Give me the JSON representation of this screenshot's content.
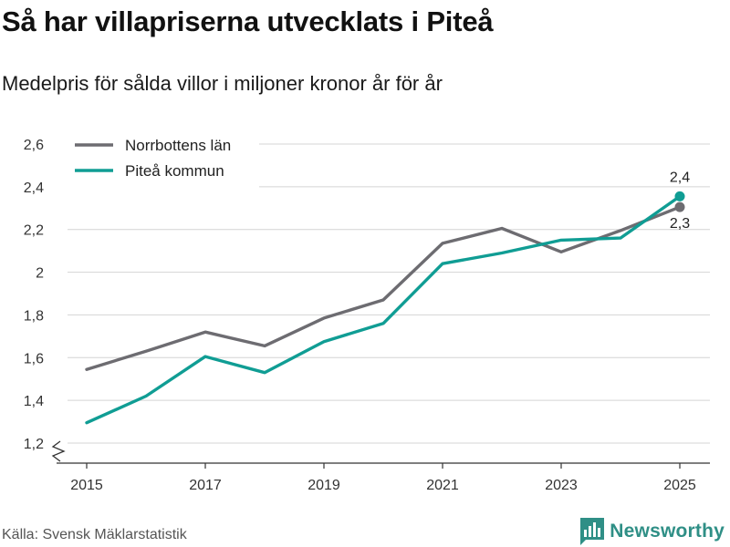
{
  "header": {
    "title": "Så har villapriserna utvecklats i Piteå",
    "subtitle": "Medelpris för sålda villor i miljoner kronor år för år"
  },
  "footer": {
    "source": "Källa: Svensk Mäklarstatistik",
    "brand": "Newsworthy"
  },
  "colors": {
    "norrbotten": "#6d6c71",
    "pitea": "#109d94",
    "grid": "#d4d4d4",
    "axis": "#333333",
    "brand": "#2f8f86"
  },
  "chart_data": {
    "type": "line",
    "title": "Så har villapriserna utvecklats i Piteå",
    "subtitle": "Medelpris för sålda villor i miljoner kronor år för år",
    "xlabel": "",
    "ylabel": "",
    "x": [
      2015,
      2016,
      2017,
      2018,
      2019,
      2020,
      2021,
      2022,
      2023,
      2024,
      2025
    ],
    "x_ticks": [
      2015,
      2017,
      2019,
      2021,
      2023,
      2025
    ],
    "y_ticks": [
      1.2,
      1.4,
      1.6,
      1.8,
      2.0,
      2.2,
      2.4,
      2.6
    ],
    "y_tick_labels": [
      "1,2",
      "1,4",
      "1,6",
      "1,8",
      "2",
      "2,2",
      "2,4",
      "2,6"
    ],
    "ylim": [
      1.2,
      2.6
    ],
    "xlim": [
      2014.5,
      2025.5
    ],
    "grid": true,
    "legend_position": "top-left",
    "axis_break": true,
    "series": [
      {
        "name": "Norrbottens län",
        "color_key": "norrbotten",
        "values": [
          1.545,
          1.63,
          1.72,
          1.655,
          1.785,
          1.87,
          2.135,
          2.205,
          2.095,
          2.195,
          2.305
        ],
        "end_label": "2,3"
      },
      {
        "name": "Piteå kommun",
        "color_key": "pitea",
        "values": [
          1.295,
          1.42,
          1.605,
          1.53,
          1.675,
          1.76,
          2.04,
          2.09,
          2.15,
          2.16,
          2.355
        ],
        "end_label": "2,4"
      }
    ]
  }
}
